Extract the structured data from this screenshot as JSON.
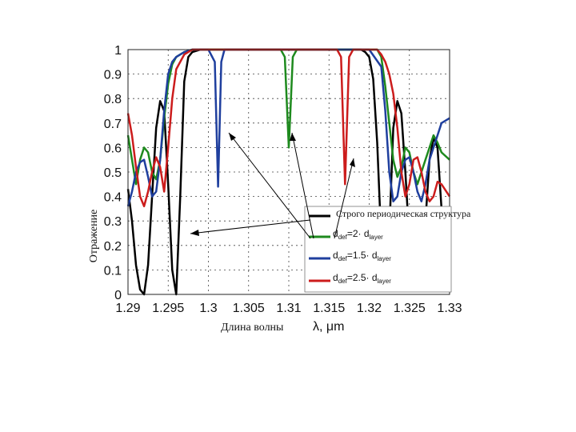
{
  "chart_data": {
    "type": "line",
    "xlabel": "Длина волны",
    "xlabel_unit": "λ, μm",
    "ylabel": "Отражение",
    "xlim": [
      1.29,
      1.33
    ],
    "ylim": [
      0,
      1
    ],
    "grid": true,
    "x_ticks": [
      "1.29",
      "1.295",
      "1.3",
      "1.305",
      "1.31",
      "1.315",
      "1.32",
      "1.325",
      "1.33"
    ],
    "y_ticks": [
      "0",
      "0.1",
      "0.2",
      "0.3",
      "0.4",
      "0.5",
      "0.6",
      "0.7",
      "0.8",
      "0.9",
      "1"
    ],
    "legend_position": "right",
    "legend_title": "Строго периодическая структура",
    "series": [
      {
        "name": "Строго периодическая структура",
        "color": "#000000",
        "x": [
          1.29,
          1.2905,
          1.291,
          1.2915,
          1.292,
          1.2925,
          1.293,
          1.2935,
          1.294,
          1.2945,
          1.295,
          1.2955,
          1.296,
          1.2965,
          1.297,
          1.2975,
          1.298,
          1.299,
          1.3,
          1.31,
          1.319,
          1.3195,
          1.32,
          1.3205,
          1.321,
          1.3215,
          1.322,
          1.3225,
          1.323,
          1.3235,
          1.324,
          1.3245,
          1.325,
          1.3255,
          1.326,
          1.3265,
          1.327,
          1.3275,
          1.328,
          1.3285,
          1.329,
          1.33
        ],
        "y": [
          0.43,
          0.3,
          0.12,
          0.02,
          0.0,
          0.12,
          0.4,
          0.68,
          0.79,
          0.75,
          0.45,
          0.1,
          0.0,
          0.4,
          0.87,
          0.97,
          0.99,
          1.0,
          1.0,
          1.0,
          1.0,
          0.99,
          0.97,
          0.88,
          0.62,
          0.22,
          0.02,
          0.25,
          0.68,
          0.79,
          0.74,
          0.5,
          0.22,
          0.08,
          0.05,
          0.1,
          0.3,
          0.55,
          0.64,
          0.6,
          0.35,
          0.1
        ]
      },
      {
        "name": "d_def=2· d_layer",
        "color": "#1e8a1e",
        "x": [
          1.29,
          1.2905,
          1.291,
          1.2915,
          1.292,
          1.2925,
          1.293,
          1.2935,
          1.294,
          1.2945,
          1.295,
          1.2955,
          1.296,
          1.297,
          1.298,
          1.305,
          1.309,
          1.3095,
          1.31,
          1.3105,
          1.311,
          1.317,
          1.321,
          1.3215,
          1.322,
          1.3225,
          1.323,
          1.3235,
          1.324,
          1.3245,
          1.325,
          1.3255,
          1.326,
          1.3265,
          1.327,
          1.3275,
          1.328,
          1.3285,
          1.329,
          1.33
        ],
        "y": [
          0.65,
          0.55,
          0.45,
          0.55,
          0.6,
          0.58,
          0.5,
          0.47,
          0.55,
          0.72,
          0.86,
          0.94,
          0.97,
          0.99,
          1.0,
          1.0,
          1.0,
          0.97,
          0.6,
          0.97,
          1.0,
          1.0,
          1.0,
          0.97,
          0.85,
          0.7,
          0.55,
          0.48,
          0.52,
          0.6,
          0.58,
          0.5,
          0.45,
          0.5,
          0.55,
          0.6,
          0.65,
          0.62,
          0.58,
          0.55
        ]
      },
      {
        "name": "d_def=1.5· d_layer",
        "color": "#1f3f9e",
        "x": [
          1.29,
          1.2905,
          1.291,
          1.2915,
          1.292,
          1.2925,
          1.293,
          1.2935,
          1.294,
          1.2945,
          1.295,
          1.2955,
          1.296,
          1.297,
          1.298,
          1.3,
          1.3008,
          1.3012,
          1.3016,
          1.302,
          1.305,
          1.32,
          1.3215,
          1.322,
          1.3225,
          1.323,
          1.3235,
          1.324,
          1.3245,
          1.325,
          1.3255,
          1.326,
          1.3265,
          1.327,
          1.3275,
          1.328,
          1.3285,
          1.329,
          1.33
        ],
        "y": [
          0.36,
          0.42,
          0.5,
          0.54,
          0.55,
          0.48,
          0.4,
          0.42,
          0.55,
          0.75,
          0.9,
          0.95,
          0.97,
          0.99,
          1.0,
          1.0,
          0.95,
          0.44,
          0.95,
          1.0,
          1.0,
          1.0,
          0.93,
          0.75,
          0.5,
          0.38,
          0.4,
          0.5,
          0.55,
          0.56,
          0.5,
          0.42,
          0.38,
          0.45,
          0.55,
          0.6,
          0.65,
          0.7,
          0.72
        ]
      },
      {
        "name": "d_def=2.5· d_layer",
        "color": "#cc1c1c",
        "x": [
          1.29,
          1.2905,
          1.291,
          1.2915,
          1.292,
          1.2925,
          1.293,
          1.2935,
          1.294,
          1.2945,
          1.295,
          1.2955,
          1.296,
          1.297,
          1.298,
          1.31,
          1.316,
          1.3165,
          1.317,
          1.3175,
          1.318,
          1.321,
          1.3215,
          1.322,
          1.3225,
          1.323,
          1.3235,
          1.324,
          1.3245,
          1.325,
          1.3255,
          1.326,
          1.3265,
          1.327,
          1.3275,
          1.328,
          1.3285,
          1.329,
          1.33
        ],
        "y": [
          0.74,
          0.65,
          0.52,
          0.4,
          0.36,
          0.42,
          0.5,
          0.56,
          0.52,
          0.42,
          0.6,
          0.8,
          0.92,
          0.98,
          1.0,
          1.0,
          1.0,
          0.97,
          0.45,
          0.97,
          1.0,
          1.0,
          0.98,
          0.95,
          0.9,
          0.82,
          0.68,
          0.5,
          0.4,
          0.45,
          0.55,
          0.56,
          0.5,
          0.42,
          0.38,
          0.4,
          0.46,
          0.45,
          0.4
        ]
      }
    ]
  }
}
